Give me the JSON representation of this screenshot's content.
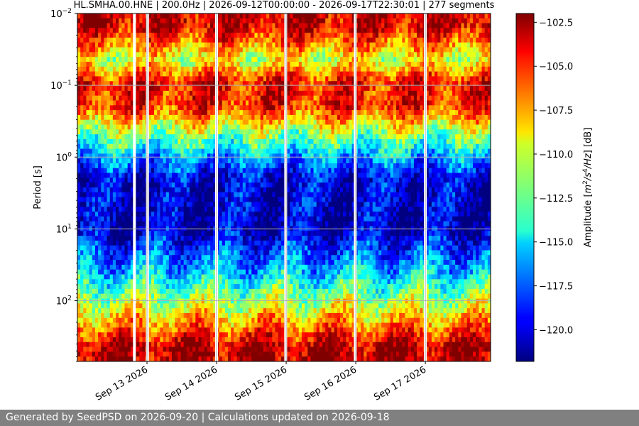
{
  "chart_data": {
    "type": "heatmap",
    "title": "HL.SMHA.00.HNE | 200.0Hz | 2026-09-12T00:00:00 - 2026-09-17T22:30:01 | 277 segments",
    "xlabel": "",
    "ylabel": "Period [s]",
    "x_tick_labels": [
      "Sep 13 2026",
      "Sep 14 2026",
      "Sep 15 2026",
      "Sep 16 2026",
      "Sep 17 2026"
    ],
    "x_range": [
      "2026-09-12T00:00:00",
      "2026-09-17T22:30:01"
    ],
    "y_scale": "log",
    "y_inverted": true,
    "y_range": [
      0.01,
      700
    ],
    "y_ticks": [
      0.01,
      0.1,
      1,
      10,
      100
    ],
    "y_tick_label_bases": [
      "10",
      "10",
      "10",
      "10",
      "10"
    ],
    "y_tick_label_exponents": [
      "−2",
      "−1",
      "0",
      "1",
      "2"
    ],
    "grid": true,
    "colormap": "jet",
    "colorbar": {
      "label_prefix": "Amplitude [",
      "label_m": "m",
      "label_s": "/s",
      "label_hz": "/Hz",
      "label_exp_m": "2",
      "label_exp_s": "4",
      "label_unit": "] [dB]",
      "range": [
        -121.8,
        -102.0
      ],
      "ticks": [
        -102.5,
        -105.0,
        -107.5,
        -110.0,
        -112.5,
        -115.0,
        -117.5,
        -120.0
      ],
      "tick_labels": [
        "−102.5",
        "−105.0",
        "−107.5",
        "−110.0",
        "−112.5",
        "−115.0",
        "−117.5",
        "−120.0"
      ]
    },
    "gaps": [
      "2026-09-12T19:40",
      "2026-09-13T00:10",
      "2026-09-14T00:00",
      "2026-09-14T23:50",
      "2026-09-15T23:50",
      "2026-09-17T00:00"
    ],
    "energy_bands": [
      {
        "period_s": 0.015,
        "level_db": -103.5
      },
      {
        "period_s": 0.045,
        "level_db": -110.0
      },
      {
        "period_s": 0.09,
        "level_db": -104.5
      },
      {
        "period_s": 0.2,
        "level_db": -105.0
      },
      {
        "period_s": 0.5,
        "level_db": -112.0
      },
      {
        "period_s": 2,
        "level_db": -120.0
      },
      {
        "period_s": 10,
        "level_db": -120.5
      },
      {
        "period_s": 40,
        "level_db": -115.5
      },
      {
        "period_s": 150,
        "level_db": -109.0
      },
      {
        "period_s": 450,
        "level_db": -103.0
      }
    ]
  },
  "footer": {
    "text": "Generated by SeedPSD on 2026-09-20 | Calculations updated on 2026-09-18"
  },
  "colors": {
    "footer_bg": "#808080",
    "footer_text": "#ffffff",
    "grid": "#b0b0b0"
  }
}
